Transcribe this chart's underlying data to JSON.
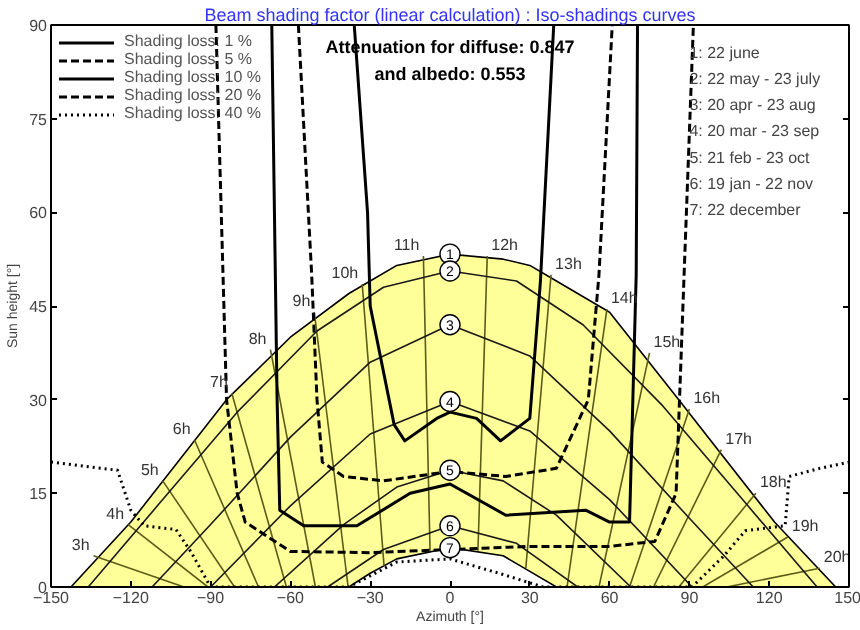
{
  "chart_data": {
    "type": "line",
    "title": "Beam shading factor (linear calculation) : Iso-shadings curves",
    "xlabel": "Azimuth [°]",
    "ylabel": "Sun height [°]",
    "xlim": [
      -150,
      150
    ],
    "ylim": [
      0,
      90
    ],
    "xticks": [
      -150,
      -120,
      -90,
      -60,
      -30,
      0,
      30,
      60,
      90,
      120,
      150
    ],
    "yticks": [
      0,
      15,
      30,
      45,
      60,
      75,
      90
    ],
    "legend": "top left",
    "series": [
      {
        "type": "area",
        "color": "#ffff99",
        "x": [
          -142.5,
          -120,
          -84,
          -60,
          -38,
          -30,
          -20,
          0,
          20,
          30,
          40,
          60,
          86,
          122,
          145
        ],
        "values": [
          0,
          10.4,
          30,
          40,
          47,
          49,
          51.5,
          53.3,
          52.5,
          51.5,
          49,
          44,
          30,
          10.4,
          0
        ]
      },
      {
        "type": "area",
        "color": "#ffffff",
        "x": [
          -38,
          -30,
          -20,
          0,
          20,
          30,
          40
        ],
        "values": [
          0,
          2.2,
          4.5,
          6.3,
          5,
          2.5,
          0
        ]
      },
      {
        "color": "#5c5c1a",
        "x": [
          -134,
          -100
        ],
        "values": [
          5,
          0
        ]
      },
      {
        "color": "#5c5c1a",
        "x": [
          -121,
          -91
        ],
        "values": [
          10,
          0
        ]
      },
      {
        "color": "#5c5c1a",
        "x": [
          -108,
          -81
        ],
        "values": [
          17,
          0
        ]
      },
      {
        "color": "#5c5c1a",
        "x": [
          -96,
          -72
        ],
        "values": [
          23.5,
          0
        ]
      },
      {
        "color": "#5c5c1a",
        "x": [
          -82,
          -61.5
        ],
        "values": [
          31,
          0
        ]
      },
      {
        "color": "#5c5c1a",
        "x": [
          -67.5,
          -50.6
        ],
        "values": [
          38,
          0
        ]
      },
      {
        "color": "#5c5c1a",
        "x": [
          -51,
          -38.3
        ],
        "values": [
          44,
          0
        ]
      },
      {
        "color": "#5c5c1a",
        "x": [
          -33,
          -24.8
        ],
        "values": [
          48.5,
          3.4
        ]
      },
      {
        "color": "#5c5c1a",
        "x": [
          -10,
          -7.5
        ],
        "values": [
          53,
          5.8
        ]
      },
      {
        "color": "#5c5c1a",
        "x": [
          14,
          10.5
        ],
        "values": [
          53,
          5.8
        ]
      },
      {
        "color": "#5c5c1a",
        "x": [
          38,
          28.5
        ],
        "values": [
          50,
          3
        ]
      },
      {
        "color": "#5c5c1a",
        "x": [
          59,
          44
        ],
        "values": [
          44.5,
          0
        ]
      },
      {
        "color": "#5c5c1a",
        "x": [
          75,
          56
        ],
        "values": [
          37.5,
          0
        ]
      },
      {
        "color": "#5c5c1a",
        "x": [
          90,
          67.5
        ],
        "values": [
          28.5,
          0
        ]
      },
      {
        "color": "#5c5c1a",
        "x": [
          102,
          76.5
        ],
        "values": [
          22,
          0
        ]
      },
      {
        "color": "#5c5c1a",
        "x": [
          115,
          86
        ],
        "values": [
          15,
          0
        ]
      },
      {
        "color": "#5c5c1a",
        "x": [
          127,
          95
        ],
        "values": [
          8,
          0
        ]
      },
      {
        "color": "#5c5c1a",
        "x": [
          139,
          104
        ],
        "values": [
          3,
          0
        ]
      },
      {
        "color": "#1a1a1a",
        "x": [
          -136,
          -110,
          -80,
          -50,
          -25,
          0,
          25,
          50,
          80,
          112,
          138
        ],
        "values": [
          0,
          13,
          28,
          41,
          48,
          50.6,
          49,
          42,
          29,
          13,
          0
        ]
      },
      {
        "color": "#1a1a1a",
        "x": [
          -112,
          -90,
          -60,
          -30,
          0,
          30,
          60,
          90,
          114
        ],
        "values": [
          0,
          10,
          24,
          36,
          42,
          37,
          25,
          11,
          0
        ]
      },
      {
        "color": "#1a1a1a",
        "x": [
          -90,
          -60,
          -30,
          0,
          30,
          60,
          91
        ],
        "values": [
          0,
          13,
          24.5,
          29.7,
          25,
          14,
          0
        ]
      },
      {
        "color": "#1a1a1a",
        "x": [
          -66,
          -40,
          -20,
          0,
          20,
          40,
          68
        ],
        "values": [
          0,
          10,
          16,
          18.7,
          17,
          11.5,
          0
        ]
      },
      {
        "color": "#1a1a1a",
        "x": [
          -46,
          -25,
          0,
          25,
          48
        ],
        "values": [
          0,
          6,
          9.8,
          7,
          0
        ]
      },
      {
        "name": "Shading loss: 1 %",
        "color": "#000000",
        "line_style": "solid",
        "x": [
          -36,
          -31,
          -30,
          -21,
          -17,
          -5,
          0,
          10,
          19,
          30,
          34,
          39
        ],
        "values": [
          90,
          60,
          45,
          26,
          23.4,
          27,
          28,
          27,
          23.4,
          27,
          49,
          90
        ]
      },
      {
        "name": "Shading loss: 5 %",
        "color": "#000000",
        "line_style": "dashed",
        "x": [
          -57,
          -52,
          -50,
          -48,
          -40,
          -25,
          0,
          21,
          40,
          52,
          56,
          61
        ],
        "values": [
          90,
          50,
          30,
          20,
          17.7,
          17,
          18.5,
          17.7,
          19,
          30,
          50,
          90
        ]
      },
      {
        "name": "Shading loss: 10 %",
        "color": "#000000",
        "line_style": "solid",
        "x": [
          -67,
          -66,
          -65,
          -64,
          -55,
          -35,
          -15,
          0,
          21,
          51,
          60,
          67.5,
          70,
          70.5
        ],
        "values": [
          90,
          60,
          30,
          12.3,
          9.8,
          9.8,
          15,
          16.5,
          11.5,
          12.3,
          10.4,
          10.4,
          50,
          90
        ]
      },
      {
        "name": "Shading loss: 20 %",
        "color": "#000000",
        "line_style": "dashed",
        "x": [
          -88,
          -86,
          -84,
          -80,
          -77,
          -60,
          -30,
          0,
          30,
          60,
          77,
          85,
          88,
          91.5
        ],
        "values": [
          90,
          60,
          30,
          15,
          10.4,
          5.7,
          5.5,
          6,
          6.5,
          6.5,
          7.3,
          15,
          50,
          90
        ]
      },
      {
        "name": "Shading loss: 40 %",
        "color": "#000000",
        "line_style": "dotted",
        "x": [
          -150,
          -125,
          -120,
          -115,
          -103,
          -97.5,
          -90,
          -38,
          -20,
          0,
          20,
          35,
          91,
          103,
          111,
          126,
          127.5,
          139,
          150
        ],
        "values": [
          20,
          18.7,
          12.3,
          9.8,
          9.2,
          5.7,
          0,
          0,
          4,
          4.5,
          2,
          0,
          0,
          5,
          9,
          9.8,
          17.7,
          19,
          20
        ]
      }
    ],
    "annotations": [
      "Attenuation for diffuse: 0.847",
      "and albedo: 0.553",
      "1: 22 june",
      "2: 22 may - 23 july",
      "3: 20 apr - 23 aug",
      "4: 20 mar - 23 sep",
      "5: 21 feb - 23 oct",
      "6: 19 jan - 22 nov",
      "7: 22 december",
      {
        "text": "1",
        "x": 0,
        "y": 53.3
      },
      {
        "text": "2",
        "x": 0,
        "y": 50.6
      },
      {
        "text": "3",
        "x": 0,
        "y": 42
      },
      {
        "text": "4",
        "x": 0,
        "y": 29.7
      },
      {
        "text": "5",
        "x": 0,
        "y": 18.7
      },
      {
        "text": "6",
        "x": 0,
        "y": 9.8
      },
      {
        "text": "7",
        "x": 0,
        "y": 6.3
      },
      {
        "text": "3h",
        "x": -134,
        "y": 5
      },
      {
        "text": "4h",
        "x": -121,
        "y": 10
      },
      {
        "text": "5h",
        "x": -108,
        "y": 17
      },
      {
        "text": "6h",
        "x": -96,
        "y": 23.5
      },
      {
        "text": "7h",
        "x": -82,
        "y": 31
      },
      {
        "text": "8h",
        "x": -67.5,
        "y": 38
      },
      {
        "text": "9h",
        "x": -51,
        "y": 44
      },
      {
        "text": "10h",
        "x": -33,
        "y": 48.5
      },
      {
        "text": "11h",
        "x": -10,
        "y": 53
      },
      {
        "text": "12h",
        "x": 14,
        "y": 53
      },
      {
        "text": "13h",
        "x": 38,
        "y": 50
      },
      {
        "text": "14h",
        "x": 59,
        "y": 44.5
      },
      {
        "text": "15h",
        "x": 75,
        "y": 37.5
      },
      {
        "text": "16h",
        "x": 90,
        "y": 28.5
      },
      {
        "text": "17h",
        "x": 102,
        "y": 22
      },
      {
        "text": "18h",
        "x": 115,
        "y": 15
      },
      {
        "text": "19h",
        "x": 127,
        "y": 8
      },
      {
        "text": "20h",
        "x": 139,
        "y": 3
      }
    ]
  }
}
